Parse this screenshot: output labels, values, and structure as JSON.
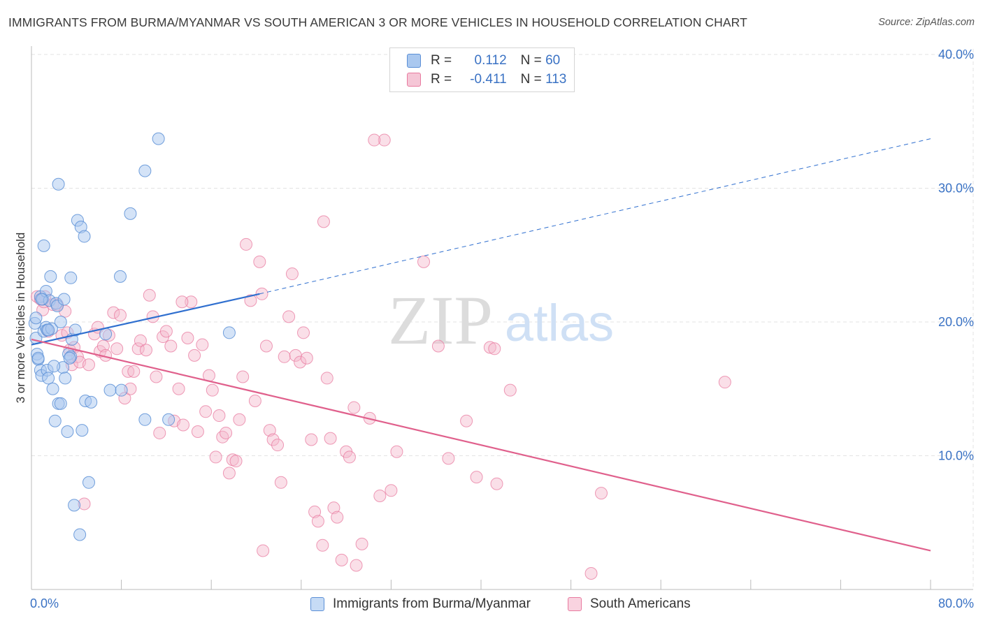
{
  "header": {
    "title": "IMMIGRANTS FROM BURMA/MYANMAR VS SOUTH AMERICAN 3 OR MORE VEHICLES IN HOUSEHOLD CORRELATION CHART",
    "source": "Source: ZipAtlas.com"
  },
  "watermark": {
    "zip": "ZIP",
    "atlas": "atlas"
  },
  "legend": {
    "rows": [
      {
        "r_label": "R =",
        "r_value": "0.112",
        "n_label": "N =",
        "n_value": "60"
      },
      {
        "r_label": "R =",
        "r_value": "-0.411",
        "n_label": "N =",
        "n_value": "113"
      }
    ]
  },
  "bottom_legend": {
    "items": [
      {
        "label": "Immigrants from Burma/Myanmar"
      },
      {
        "label": "South Americans"
      }
    ]
  },
  "colors": {
    "blue_fill": "#aac8ef",
    "blue_stroke": "#5b8fd6",
    "blue_line": "#2f6fcf",
    "pink_fill": "#f5b8cc",
    "pink_stroke": "#e87a9f",
    "pink_line": "#e0608c",
    "tick_label": "#3a72c4",
    "grid": "#e3e3e3"
  },
  "chart_data": {
    "type": "scatter",
    "title": "IMMIGRANTS FROM BURMA/MYANMAR VS SOUTH AMERICAN 3 OR MORE VEHICLES IN HOUSEHOLD CORRELATION CHART",
    "ylabel": "3 or more Vehicles in Household",
    "xlim": [
      0,
      80
    ],
    "ylim": [
      0,
      40
    ],
    "x_tick_labels": [
      "0.0%",
      "80.0%"
    ],
    "y_ticks": [
      10,
      20,
      30,
      40
    ],
    "y_tick_labels": [
      "10.0%",
      "20.0%",
      "30.0%",
      "40.0%"
    ],
    "grid": true,
    "legend_position": "top-center",
    "series": [
      {
        "name": "Immigrants from Burma/Myanmar",
        "color": "#aac8ef",
        "R": 0.112,
        "N": 60,
        "trend": {
          "x0": 0,
          "y0": 18.3,
          "x_solid_end": 20.3,
          "y_solid_end": 22.1,
          "x_dash_end": 80,
          "y_dash_end": 33.7
        },
        "points": [
          [
            0.3,
            19.9
          ],
          [
            0.4,
            18.8
          ],
          [
            0.4,
            20.3
          ],
          [
            0.5,
            17.6
          ],
          [
            0.6,
            17.2
          ],
          [
            0.8,
            21.9
          ],
          [
            0.8,
            16.4
          ],
          [
            0.9,
            16.0
          ],
          [
            1.0,
            21.7
          ],
          [
            1.1,
            19.3
          ],
          [
            1.1,
            25.7
          ],
          [
            1.3,
            22.3
          ],
          [
            1.3,
            19.6
          ],
          [
            1.4,
            19.4
          ],
          [
            1.4,
            16.4
          ],
          [
            1.5,
            15.8
          ],
          [
            1.6,
            21.6
          ],
          [
            1.7,
            23.4
          ],
          [
            1.8,
            19.5
          ],
          [
            1.9,
            15.0
          ],
          [
            2.1,
            12.6
          ],
          [
            2.2,
            21.4
          ],
          [
            2.3,
            21.2
          ],
          [
            2.4,
            30.3
          ],
          [
            2.4,
            13.9
          ],
          [
            2.6,
            13.9
          ],
          [
            2.6,
            20.0
          ],
          [
            2.8,
            16.6
          ],
          [
            2.9,
            21.7
          ],
          [
            3.0,
            15.8
          ],
          [
            3.2,
            11.8
          ],
          [
            3.3,
            17.6
          ],
          [
            3.5,
            23.3
          ],
          [
            3.5,
            17.4
          ],
          [
            3.6,
            18.7
          ],
          [
            3.8,
            6.3
          ],
          [
            3.9,
            19.4
          ],
          [
            4.1,
            27.6
          ],
          [
            4.3,
            4.1
          ],
          [
            4.4,
            27.1
          ],
          [
            4.5,
            11.9
          ],
          [
            4.7,
            26.4
          ],
          [
            4.8,
            14.1
          ],
          [
            5.1,
            8.0
          ],
          [
            5.3,
            14.0
          ],
          [
            6.6,
            19.1
          ],
          [
            7.0,
            14.9
          ],
          [
            7.9,
            23.4
          ],
          [
            8.0,
            14.9
          ],
          [
            8.8,
            28.1
          ],
          [
            10.1,
            31.3
          ],
          [
            10.1,
            12.7
          ],
          [
            11.3,
            33.7
          ],
          [
            12.2,
            12.7
          ],
          [
            17.6,
            19.2
          ],
          [
            0.6,
            17.3
          ],
          [
            1.5,
            19.4
          ],
          [
            2.0,
            16.7
          ],
          [
            3.4,
            17.3
          ],
          [
            0.9,
            21.7
          ]
        ]
      },
      {
        "name": "South Americans",
        "color": "#f5b8cc",
        "R": -0.411,
        "N": 113,
        "trend": {
          "x0": 0,
          "y0": 18.7,
          "x1": 80,
          "y1": 2.9
        },
        "points": [
          [
            0.5,
            21.9
          ],
          [
            0.8,
            21.7
          ],
          [
            1.0,
            20.9
          ],
          [
            1.1,
            21.5
          ],
          [
            1.2,
            21.9
          ],
          [
            1.5,
            19.3
          ],
          [
            1.9,
            21.3
          ],
          [
            2.3,
            21.3
          ],
          [
            2.7,
            19.0
          ],
          [
            3.0,
            20.8
          ],
          [
            3.2,
            19.2
          ],
          [
            3.4,
            17.9
          ],
          [
            3.6,
            16.8
          ],
          [
            3.8,
            18.1
          ],
          [
            4.1,
            17.4
          ],
          [
            4.3,
            17.0
          ],
          [
            4.7,
            6.4
          ],
          [
            5.1,
            16.8
          ],
          [
            5.6,
            19.1
          ],
          [
            5.9,
            19.6
          ],
          [
            6.1,
            17.8
          ],
          [
            6.4,
            18.2
          ],
          [
            6.6,
            17.5
          ],
          [
            6.9,
            19.0
          ],
          [
            7.3,
            20.7
          ],
          [
            7.6,
            18.0
          ],
          [
            7.9,
            20.5
          ],
          [
            8.3,
            14.3
          ],
          [
            8.6,
            16.3
          ],
          [
            8.8,
            15.0
          ],
          [
            9.1,
            16.3
          ],
          [
            9.5,
            18.0
          ],
          [
            9.7,
            18.6
          ],
          [
            10.2,
            17.9
          ],
          [
            10.5,
            22.0
          ],
          [
            10.8,
            20.4
          ],
          [
            11.1,
            15.9
          ],
          [
            11.4,
            11.7
          ],
          [
            11.7,
            18.9
          ],
          [
            12.0,
            19.3
          ],
          [
            12.4,
            18.2
          ],
          [
            12.7,
            12.6
          ],
          [
            13.1,
            15.0
          ],
          [
            13.5,
            12.3
          ],
          [
            13.9,
            18.8
          ],
          [
            14.2,
            21.5
          ],
          [
            14.5,
            17.5
          ],
          [
            14.8,
            11.8
          ],
          [
            15.2,
            18.3
          ],
          [
            15.5,
            13.3
          ],
          [
            15.8,
            16.0
          ],
          [
            16.1,
            14.9
          ],
          [
            16.4,
            9.9
          ],
          [
            16.7,
            13.0
          ],
          [
            17.0,
            11.4
          ],
          [
            17.3,
            11.7
          ],
          [
            17.6,
            8.7
          ],
          [
            17.9,
            9.7
          ],
          [
            18.2,
            9.6
          ],
          [
            18.5,
            12.7
          ],
          [
            18.8,
            15.9
          ],
          [
            19.1,
            25.8
          ],
          [
            19.5,
            21.6
          ],
          [
            19.9,
            14.1
          ],
          [
            20.3,
            24.5
          ],
          [
            20.6,
            2.9
          ],
          [
            20.9,
            18.2
          ],
          [
            21.2,
            11.9
          ],
          [
            21.5,
            11.2
          ],
          [
            21.9,
            10.8
          ],
          [
            22.2,
            8.0
          ],
          [
            22.5,
            17.4
          ],
          [
            22.9,
            20.4
          ],
          [
            23.2,
            23.6
          ],
          [
            23.5,
            17.5
          ],
          [
            23.9,
            17.0
          ],
          [
            24.2,
            19.2
          ],
          [
            24.5,
            17.3
          ],
          [
            24.9,
            11.2
          ],
          [
            25.2,
            5.8
          ],
          [
            25.5,
            5.1
          ],
          [
            25.9,
            3.3
          ],
          [
            26.3,
            15.8
          ],
          [
            26.6,
            11.3
          ],
          [
            26.9,
            6.1
          ],
          [
            27.2,
            5.4
          ],
          [
            27.6,
            2.2
          ],
          [
            28.0,
            10.3
          ],
          [
            28.3,
            9.9
          ],
          [
            28.7,
            13.6
          ],
          [
            28.9,
            1.8
          ],
          [
            29.4,
            3.4
          ],
          [
            30.1,
            12.8
          ],
          [
            31.0,
            7.0
          ],
          [
            31.4,
            33.6
          ],
          [
            32.0,
            7.4
          ],
          [
            32.5,
            10.3
          ],
          [
            34.9,
            24.5
          ],
          [
            36.2,
            18.2
          ],
          [
            37.1,
            9.8
          ],
          [
            38.7,
            12.6
          ],
          [
            39.6,
            8.4
          ],
          [
            40.8,
            18.1
          ],
          [
            41.2,
            18.0
          ],
          [
            41.4,
            7.9
          ],
          [
            42.6,
            14.9
          ],
          [
            49.8,
            1.2
          ],
          [
            50.7,
            7.2
          ],
          [
            61.7,
            15.5
          ],
          [
            26.0,
            27.5
          ],
          [
            30.5,
            33.6
          ],
          [
            20.5,
            22.1
          ],
          [
            13.4,
            21.5
          ]
        ]
      }
    ]
  }
}
